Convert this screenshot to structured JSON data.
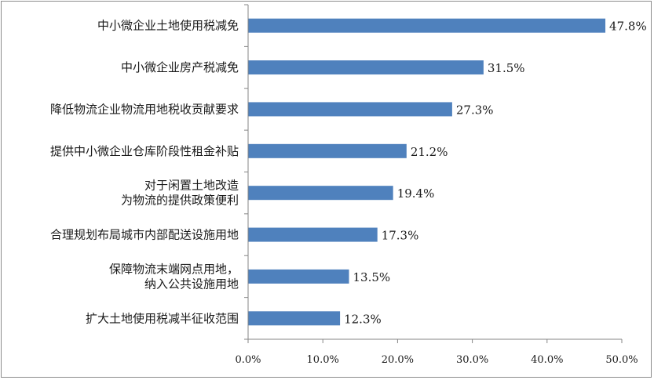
{
  "chart_data": {
    "type": "bar",
    "orientation": "horizontal",
    "categories": [
      [
        "中小微企业土地使用税减免"
      ],
      [
        "中小微企业房产税减免"
      ],
      [
        "降低物流企业物流用地税收贡献要求"
      ],
      [
        "提供中小微企业仓库阶段性租金补贴"
      ],
      [
        "对于闲置土地改造",
        "为物流的提供政策便利"
      ],
      [
        "合理规划布局城市内部配送设施用地"
      ],
      [
        "保障物流末端网点用地，",
        "纳入公共设施用地"
      ],
      [
        "扩大土地使用税减半征收范围"
      ]
    ],
    "values": [
      47.8,
      31.5,
      27.3,
      21.2,
      19.4,
      17.3,
      13.5,
      12.3
    ],
    "value_labels": [
      "47.8%",
      "31.5%",
      "27.3%",
      "21.2%",
      "19.4%",
      "17.3%",
      "13.5%",
      "12.3%"
    ],
    "xlim": [
      0,
      50
    ],
    "xticks": [
      0,
      10,
      20,
      30,
      40,
      50
    ],
    "xtick_labels": [
      "0.0%",
      "10.0%",
      "20.0%",
      "30.0%",
      "40.0%",
      "50.0%"
    ],
    "grid": false,
    "bar_color": "#4f81bd",
    "axis_color": "#868686"
  }
}
